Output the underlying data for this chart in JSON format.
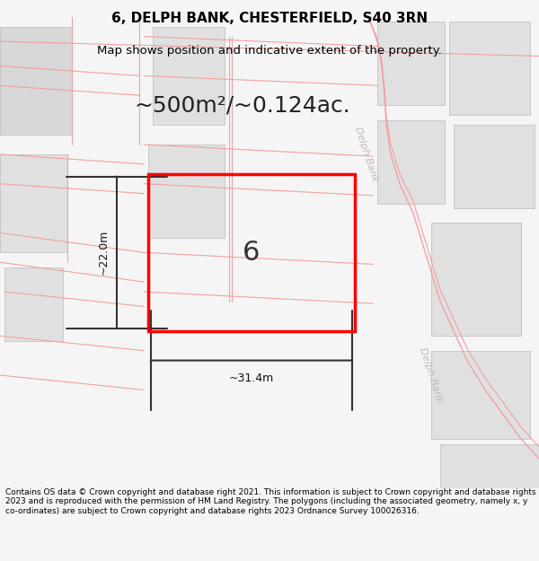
{
  "title": "6, DELPH BANK, CHESTERFIELD, S40 3RN",
  "subtitle": "Map shows position and indicative extent of the property.",
  "area_text": "~500m²/~0.124ac.",
  "dim_width": "~31.4m",
  "dim_height": "~22.0m",
  "plot_number": "6",
  "footer_text": "Contains OS data © Crown copyright and database right 2021. This information is subject to Crown copyright and database rights 2023 and is reproduced with the permission of HM Land Registry. The polygons (including the associated geometry, namely x, y co-ordinates) are subject to Crown copyright and database rights 2023 Ordnance Survey 100026316.",
  "bg_color": "#f5f5f5",
  "map_bg": "#ffffff",
  "block_color": "#e8e8e8",
  "road_line_color": "#f4a0a0",
  "road_label_color": "#c8b8b8",
  "plot_rect_color": "#ff0000",
  "plot_fill_color": "#f0f0f0",
  "dim_line_color": "#333333",
  "title_color": "#000000",
  "footer_color": "#000000"
}
